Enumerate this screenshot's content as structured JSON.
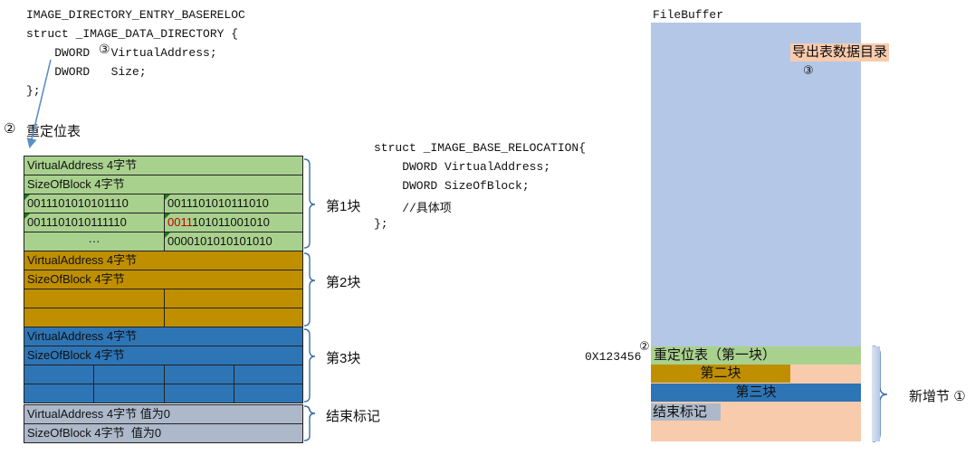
{
  "left_code": {
    "lines": [
      "IMAGE_DIRECTORY_ENTRY_BASERELOC",
      "struct _IMAGE_DATA_DIRECTORY {",
      "    DWORD   VirtualAddress;",
      "    DWORD   Size;",
      "};"
    ],
    "marker": "③"
  },
  "reloc_title": {
    "marker": "②",
    "text": "重定位表"
  },
  "table": {
    "block1": {
      "va": "VirtualAddress 4字节",
      "sob": "SizeOfBlock 4字节",
      "r1c1": "0011101010101110",
      "r1c2": "0011101010111010",
      "r2c1": "0011101010111110",
      "r2c2_red": "0011",
      "r2c2_rest": "101011001010",
      "r3c1": "···",
      "r3c2": "0000101010101010"
    },
    "block2": {
      "va": "VirtualAddress 4字节",
      "sob": "SizeOfBlock 4字节"
    },
    "block3": {
      "va": "VirtualAddress 4字节",
      "sob": "SizeOfBlock 4字节"
    },
    "end": {
      "va": "VirtualAddress 4字节 值为0",
      "sob": "SizeOfBlock 4字节  值为0"
    }
  },
  "brace_labels": {
    "b1": "第1块",
    "b2": "第2块",
    "b3": "第3块",
    "end": "结束标记"
  },
  "mid_code": {
    "lines": [
      "struct _IMAGE_BASE_RELOCATION{",
      "    DWORD VirtualAddress;",
      "    DWORD SizeOfBlock;",
      "    //具体项",
      "};"
    ]
  },
  "file_buffer": {
    "title": "FileBuffer",
    "export_dir": "导出表数据目录",
    "marker3": "③",
    "address": "0X123456",
    "marker2": "②",
    "reloc": "重定位表（第一块）",
    "block2": "第二块",
    "block3": "第三块",
    "end": "结束标记",
    "new_section": "新增节",
    "marker1": "①"
  },
  "colors": {
    "green": "#a9d18e",
    "gold": "#bf8f00",
    "blue": "#2e75b6",
    "grey": "#adb9ca",
    "file_bg": "#b4c7e7",
    "peach": "#f8cbad",
    "arrow": "#5b8fc7",
    "brace": "#3a6ea8"
  }
}
